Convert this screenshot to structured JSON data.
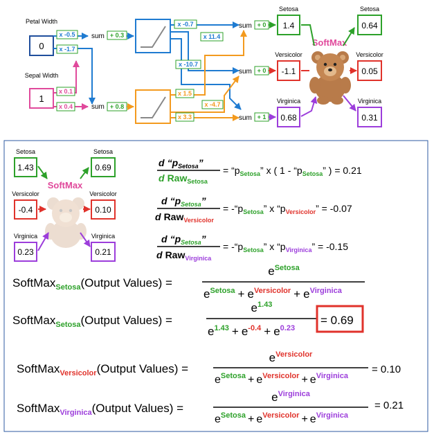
{
  "colors": {
    "blue": "#1f7bd1",
    "pink": "#e0499b",
    "green": "#2da12a",
    "red": "#e0322b",
    "purple": "#9c3ddb",
    "orange": "#f39a1e",
    "navy": "#1f4e9c",
    "teal_box": "#34a853"
  },
  "network": {
    "petal_label": "Petal Width",
    "petal_value": "0",
    "sepal_label": "Sepal Width",
    "sepal_value": "1",
    "w_petal_top": "x -0.5",
    "w_petal_bot": "x -1.7",
    "w_sepal_top": "x 0.1",
    "w_sepal_bot": "x 0.4",
    "sum_top": "sum",
    "bias_top": "+ 0.3",
    "sum_bot": "sum",
    "bias_bot": "+ 0.8",
    "w_a1": "x -0.7",
    "w_a2": "x 11.4",
    "w_a3": "x -10.7",
    "w_b1": "x 1.5",
    "w_b2": "x -4.7",
    "w_b3": "x 3.3",
    "out_sum1": "sum",
    "out_bias1": "+ 0",
    "out_sum2": "sum",
    "out_bias2": "+ 0",
    "out_sum3": "sum",
    "out_bias3": "+ 1",
    "raw_setosa_label": "Setosa",
    "raw_setosa": "1.4",
    "raw_versicolor_label": "Versicolor",
    "raw_versicolor": "-1.1",
    "raw_virginica_label": "Virginica",
    "raw_virginica": "0.68",
    "softmax": "SoftMax",
    "p_setosa_label": "Setosa",
    "p_setosa": "0.64",
    "p_versicolor_label": "Versicolor",
    "p_versicolor": "0.05",
    "p_virginica_label": "Virginica",
    "p_virginica": "0.31"
  },
  "mini": {
    "raw_setosa_label": "Setosa",
    "raw_setosa": "1.43",
    "raw_versicolor_label": "Versicolor",
    "raw_versicolor": "-0.4",
    "raw_virginica_label": "Virginica",
    "raw_virginica": "0.23",
    "softmax": "SoftMax",
    "p_setosa_label": "Setosa",
    "p_setosa": "0.69",
    "p_versicolor_label": "Versicolor",
    "p_versicolor": "0.10",
    "p_virginica_label": "Virginica",
    "p_virginica": "0.21"
  },
  "derivs": {
    "d": "d",
    "p_q": "“p",
    "q_end": "”",
    "raw": "Raw",
    "setosa": "Setosa",
    "versicolor": "Versicolor",
    "virginica": "Virginica",
    "eq1_rhs_a": "= “p",
    "eq1_rhs_b": "” x ( 1 - “p",
    "eq1_rhs_c": "” ) = 0.21",
    "eq2_rhs_a": "= -“p",
    "eq2_rhs_b": "” x “p",
    "eq2_rhs_c": "” = -0.07",
    "eq3_rhs_a": "= -“p",
    "eq3_rhs_b": "” x “p",
    "eq3_rhs_c": "” = -0.15"
  },
  "formulas": {
    "softmax": "SoftMax",
    "output_values": "(Output Values) =",
    "e": "e",
    "setosa": "Setosa",
    "versicolor": "Versicolor",
    "virginica": "Virginica",
    "plus": "+",
    "v143": "1.43",
    "vneg04": "-0.4",
    "v023": "0.23",
    "result1": "= 0.69",
    "result2": "= 0.10",
    "result3": "= 0.21"
  }
}
